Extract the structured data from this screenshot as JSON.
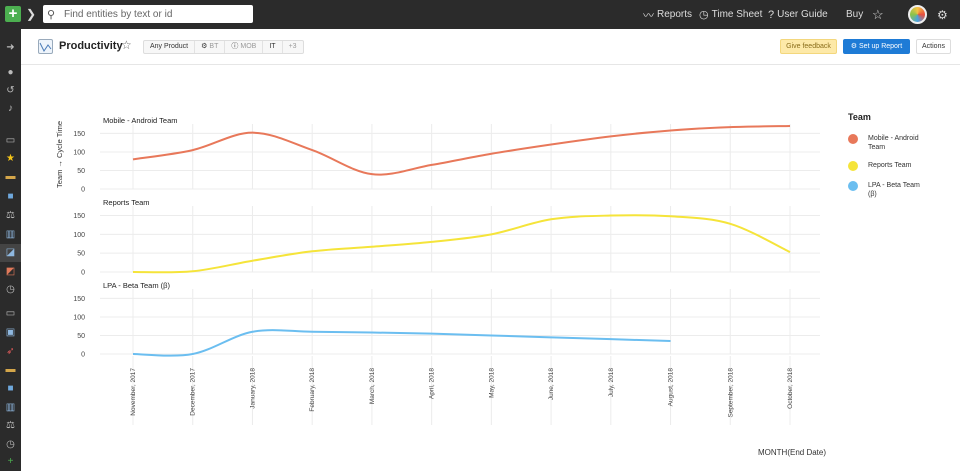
{
  "topbar": {
    "search_placeholder": "Find entities by text or id",
    "nav": {
      "reports": "Reports",
      "time_sheet": "Time Sheet",
      "user_guide": "User Guide",
      "buy": "Buy"
    }
  },
  "header": {
    "title": "Productivity",
    "filters": [
      "Any Product",
      "BT",
      "MOB",
      "IT",
      "+3"
    ],
    "feedback_label": "Give feedback",
    "setup_label": "Set up Report",
    "actions_label": "Actions"
  },
  "chart": {
    "y_axis_label": "Team → Cycle Time",
    "x_axis_title": "MONTH(End Date)",
    "legend_title": "Team"
  },
  "chart_data": {
    "type": "line",
    "x": [
      "November, 2017",
      "December, 2017",
      "January, 2018",
      "February, 2018",
      "March, 2018",
      "April, 2018",
      "May, 2018",
      "June, 2018",
      "July, 2018",
      "August, 2018",
      "September, 2018",
      "October, 2018"
    ],
    "ylim": [
      0,
      170
    ],
    "yticks": [
      0,
      50,
      100,
      150
    ],
    "grid": true,
    "legend_position": "right",
    "series": [
      {
        "name": "Mobile - Android Team",
        "color": "#E8785A",
        "values": [
          80,
          105,
          152,
          105,
          40,
          65,
          95,
          120,
          142,
          158,
          167,
          170
        ]
      },
      {
        "name": "Reports Team",
        "color": "#F5E43A",
        "values": [
          0,
          2,
          30,
          55,
          67,
          80,
          100,
          140,
          150,
          148,
          128,
          53
        ]
      },
      {
        "name": "LPA - Beta Team (β)",
        "color": "#6BBEF0",
        "values": [
          0,
          0,
          60,
          60,
          58,
          55,
          50,
          45,
          40,
          35,
          null,
          null
        ]
      }
    ]
  },
  "sidebar": {
    "icons": [
      "arrow-right-icon",
      "user-icon",
      "history-icon",
      "bell-icon",
      "folder-icon",
      "star-icon",
      "hat-icon",
      "board-icon",
      "scale-icon",
      "bar-chart-icon",
      "line-chart-icon",
      "trend-chart-icon",
      "clock-icon",
      "folder-icon",
      "server-icon",
      "rocket-icon",
      "hat-icon",
      "board-icon",
      "bar-chart-icon",
      "scale-icon",
      "clock-icon",
      "plus-icon"
    ]
  }
}
